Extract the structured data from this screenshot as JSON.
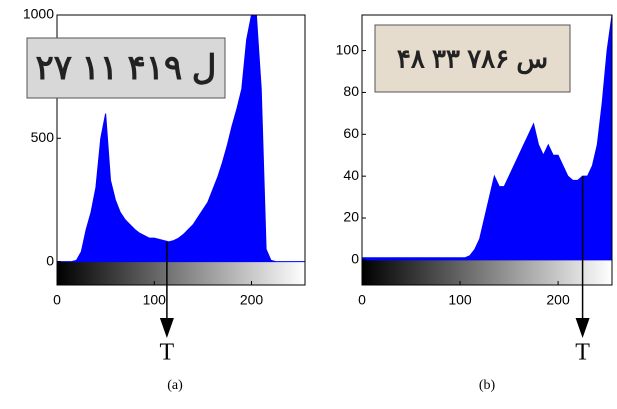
{
  "chart_data": [
    {
      "type": "area",
      "caption": "(a)",
      "color": "#0000ff",
      "inset_text": "۲۷ ل ۴۱۹ ۱۱",
      "x": [
        0,
        5,
        10,
        15,
        20,
        25,
        30,
        35,
        40,
        45,
        50,
        55,
        60,
        65,
        70,
        75,
        80,
        85,
        90,
        95,
        100,
        105,
        110,
        115,
        120,
        125,
        130,
        135,
        140,
        145,
        150,
        155,
        160,
        165,
        170,
        175,
        180,
        185,
        190,
        195,
        200,
        205,
        210,
        215,
        220,
        225,
        230,
        235,
        240,
        245,
        250,
        255
      ],
      "values": [
        0,
        0,
        0,
        0,
        5,
        40,
        130,
        200,
        300,
        500,
        600,
        330,
        250,
        200,
        170,
        150,
        130,
        115,
        105,
        95,
        95,
        90,
        85,
        80,
        85,
        95,
        110,
        130,
        150,
        180,
        210,
        240,
        290,
        340,
        400,
        470,
        550,
        620,
        700,
        900,
        1000,
        1000,
        700,
        50,
        5,
        0,
        0,
        0,
        0,
        0,
        0,
        0
      ],
      "xlim": [
        0,
        255
      ],
      "ylim": [
        -95,
        1000
      ],
      "xticks": [
        0,
        100,
        200
      ],
      "yticks": [
        0,
        500,
        1000
      ],
      "annotation": {
        "text": "T",
        "x": 113
      }
    },
    {
      "type": "area",
      "caption": "(b)",
      "color": "#0000ff",
      "inset_text": "۴۸ س ۷۸۶ ۳۳",
      "x": [
        0,
        5,
        10,
        15,
        20,
        25,
        30,
        35,
        40,
        45,
        50,
        55,
        60,
        65,
        70,
        75,
        80,
        85,
        90,
        95,
        100,
        105,
        110,
        115,
        120,
        125,
        130,
        135,
        140,
        145,
        150,
        155,
        160,
        165,
        170,
        175,
        180,
        185,
        190,
        195,
        200,
        205,
        210,
        215,
        220,
        225,
        230,
        235,
        240,
        245,
        250,
        255
      ],
      "values": [
        1,
        1,
        1,
        1,
        1,
        1,
        1,
        1,
        1,
        1,
        1,
        1,
        1,
        1,
        1,
        1,
        1,
        1,
        1,
        1,
        1,
        1,
        2,
        5,
        10,
        20,
        30,
        40,
        35,
        35,
        40,
        45,
        50,
        55,
        60,
        65,
        55,
        50,
        55,
        50,
        50,
        45,
        40,
        38,
        38,
        40,
        40,
        45,
        55,
        75,
        100,
        117
      ],
      "xlim": [
        0,
        255
      ],
      "ylim": [
        -12,
        117
      ],
      "xticks": [
        0,
        100,
        200
      ],
      "yticks": [
        0,
        20,
        40,
        60,
        80,
        100
      ],
      "annotation": {
        "text": "T",
        "x": 225
      }
    }
  ]
}
